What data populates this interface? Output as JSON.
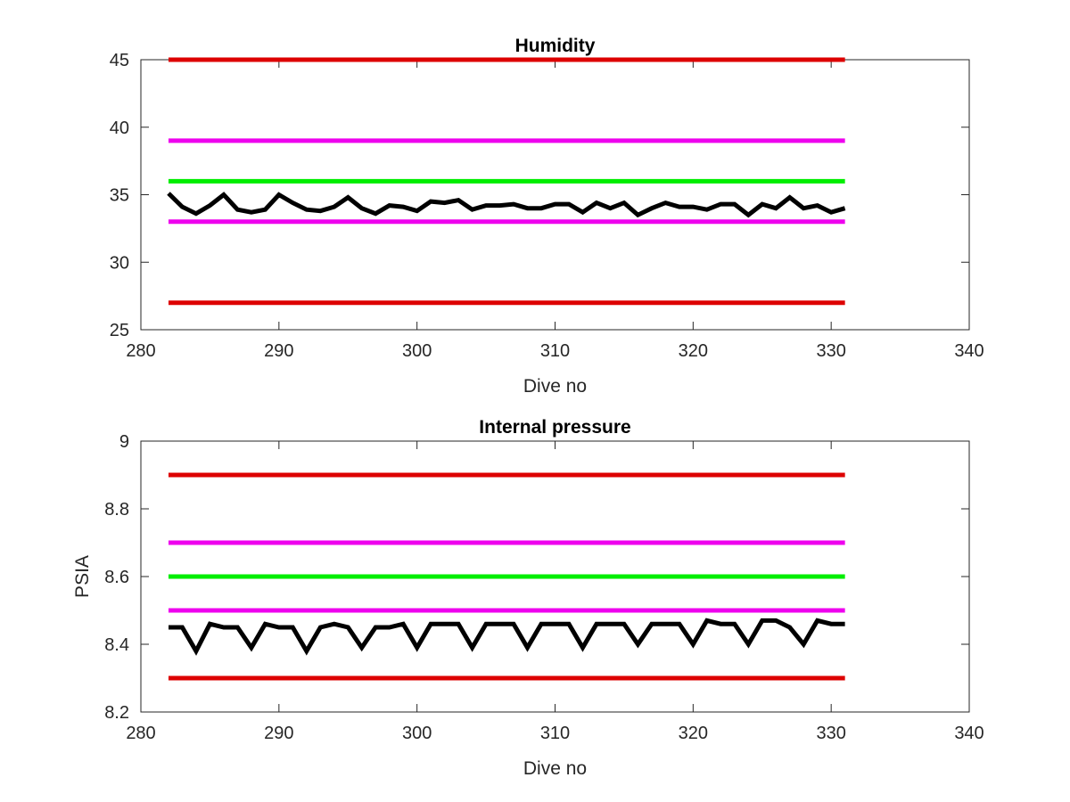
{
  "chart_data": [
    {
      "type": "line",
      "title": "Humidity",
      "xlabel": "Dive no",
      "ylabel": "",
      "xlim": [
        280,
        340
      ],
      "ylim": [
        25,
        45
      ],
      "xticks": [
        280,
        290,
        300,
        310,
        320,
        330,
        340
      ],
      "yticks": [
        25,
        30,
        35,
        40,
        45
      ],
      "xtick_labels": [
        "280",
        "290",
        "300",
        "310",
        "320",
        "330",
        "340"
      ],
      "ytick_labels": [
        "25",
        "30",
        "35",
        "40",
        "45"
      ],
      "grid": false,
      "thresholds": [
        {
          "y": 45,
          "x": [
            282,
            331
          ],
          "color": "#dd0000"
        },
        {
          "y": 39,
          "x": [
            282,
            331
          ],
          "color": "#ee00ee"
        },
        {
          "y": 36,
          "x": [
            282,
            331
          ],
          "color": "#00ee00"
        },
        {
          "y": 33,
          "x": [
            282,
            331
          ],
          "color": "#ee00ee"
        },
        {
          "y": 27,
          "x": [
            282,
            331
          ],
          "color": "#dd0000"
        }
      ],
      "series": [
        {
          "color": "#000000",
          "x": [
            282,
            283,
            284,
            285,
            286,
            287,
            288,
            289,
            290,
            291,
            292,
            293,
            294,
            295,
            296,
            297,
            298,
            299,
            300,
            301,
            302,
            303,
            304,
            305,
            306,
            307,
            308,
            309,
            310,
            311,
            312,
            313,
            314,
            315,
            316,
            317,
            318,
            319,
            320,
            321,
            322,
            323,
            324,
            325,
            326,
            327,
            328,
            329,
            330,
            331
          ],
          "values": [
            35.1,
            34.1,
            33.6,
            34.2,
            35.0,
            33.9,
            33.7,
            33.9,
            35.0,
            34.4,
            33.9,
            33.8,
            34.1,
            34.8,
            34.0,
            33.6,
            34.2,
            34.1,
            33.8,
            34.5,
            34.4,
            34.6,
            33.9,
            34.2,
            34.2,
            34.3,
            34.0,
            34.0,
            34.3,
            34.3,
            33.7,
            34.4,
            34.0,
            34.4,
            33.5,
            34.0,
            34.4,
            34.1,
            34.1,
            33.9,
            34.3,
            34.3,
            33.5,
            34.3,
            34.0,
            34.8,
            34.0,
            34.2,
            33.7,
            34.0
          ]
        }
      ]
    },
    {
      "type": "line",
      "title": "Internal pressure",
      "xlabel": "Dive no",
      "ylabel": "PSIA",
      "xlim": [
        280,
        340
      ],
      "ylim": [
        8.2,
        9.0
      ],
      "xticks": [
        280,
        290,
        300,
        310,
        320,
        330,
        340
      ],
      "yticks": [
        8.2,
        8.4,
        8.6,
        8.8,
        9.0
      ],
      "xtick_labels": [
        "280",
        "290",
        "300",
        "310",
        "320",
        "330",
        "340"
      ],
      "ytick_labels": [
        "8.2",
        "8.4",
        "8.6",
        "8.8",
        "9"
      ],
      "grid": false,
      "thresholds": [
        {
          "y": 8.9,
          "x": [
            282,
            331
          ],
          "color": "#dd0000"
        },
        {
          "y": 8.7,
          "x": [
            282,
            331
          ],
          "color": "#ee00ee"
        },
        {
          "y": 8.6,
          "x": [
            282,
            331
          ],
          "color": "#00ee00"
        },
        {
          "y": 8.5,
          "x": [
            282,
            331
          ],
          "color": "#ee00ee"
        },
        {
          "y": 8.3,
          "x": [
            282,
            331
          ],
          "color": "#dd0000"
        }
      ],
      "series": [
        {
          "color": "#000000",
          "x": [
            282,
            283,
            284,
            285,
            286,
            287,
            288,
            289,
            290,
            291,
            292,
            293,
            294,
            295,
            296,
            297,
            298,
            299,
            300,
            301,
            302,
            303,
            304,
            305,
            306,
            307,
            308,
            309,
            310,
            311,
            312,
            313,
            314,
            315,
            316,
            317,
            318,
            319,
            320,
            321,
            322,
            323,
            324,
            325,
            326,
            327,
            328,
            329,
            330,
            331
          ],
          "values": [
            8.45,
            8.45,
            8.38,
            8.46,
            8.45,
            8.45,
            8.39,
            8.46,
            8.45,
            8.45,
            8.38,
            8.45,
            8.46,
            8.45,
            8.39,
            8.45,
            8.45,
            8.46,
            8.39,
            8.46,
            8.46,
            8.46,
            8.39,
            8.46,
            8.46,
            8.46,
            8.39,
            8.46,
            8.46,
            8.46,
            8.39,
            8.46,
            8.46,
            8.46,
            8.4,
            8.46,
            8.46,
            8.46,
            8.4,
            8.47,
            8.46,
            8.46,
            8.4,
            8.47,
            8.47,
            8.45,
            8.4,
            8.47,
            8.46,
            8.46
          ]
        }
      ]
    }
  ]
}
